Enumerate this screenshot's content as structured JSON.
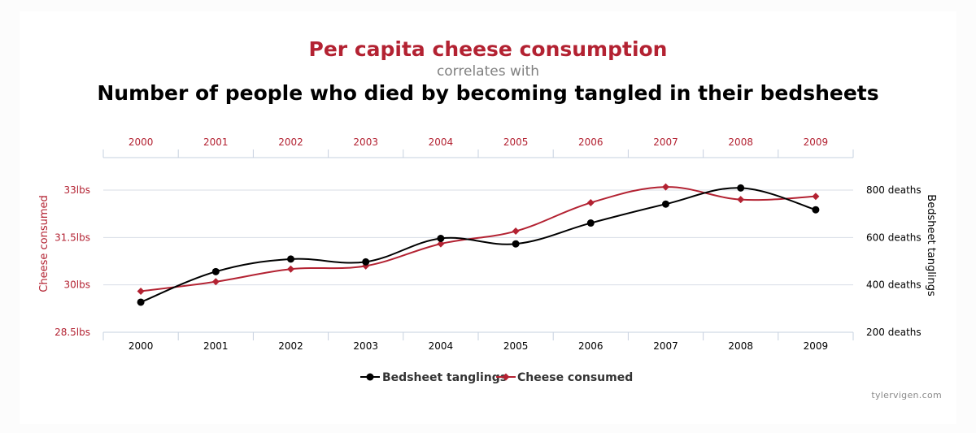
{
  "titles": {
    "primary": "Per capita cheese consumption",
    "connector": "correlates with",
    "secondary": "Number of people who died by becoming tangled in their bedsheets"
  },
  "credit": "tylervigen.com",
  "colors": {
    "cheese": "#b32232",
    "bedsheet": "#000000",
    "grid": "#d8dde6",
    "axis": "#c6d0df"
  },
  "chart_data": {
    "type": "line",
    "x": [
      "2000",
      "2001",
      "2002",
      "2003",
      "2004",
      "2005",
      "2006",
      "2007",
      "2008",
      "2009"
    ],
    "series": [
      {
        "name": "Bedsheet tanglings",
        "axis": "right",
        "marker": "circle",
        "values": [
          327,
          456,
          509,
          497,
          596,
          573,
          661,
          741,
          809,
          717
        ]
      },
      {
        "name": "Cheese consumed",
        "axis": "left",
        "marker": "diamond",
        "values": [
          29.8,
          30.1,
          30.5,
          30.6,
          31.3,
          31.7,
          32.6,
          33.1,
          32.7,
          32.8
        ]
      }
    ],
    "y_left": {
      "label": "Cheese consumed",
      "range": [
        28.5,
        33
      ],
      "ticks": [
        28.5,
        30,
        31.5,
        33
      ],
      "tick_labels": [
        "28.5lbs",
        "30lbs",
        "31.5lbs",
        "33lbs"
      ]
    },
    "y_right": {
      "label": "Bedsheet tanglings",
      "range": [
        200,
        800
      ],
      "ticks": [
        200,
        400,
        600,
        800
      ],
      "tick_labels": [
        "200 deaths",
        "400 deaths",
        "600 deaths",
        "800 deaths"
      ]
    },
    "grid": true,
    "legend": "bottom-center"
  }
}
